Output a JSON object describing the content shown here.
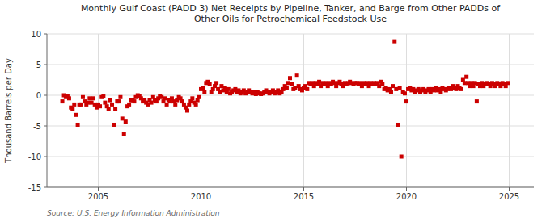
{
  "chart_data": {
    "type": "scatter",
    "title": "Monthly Gulf Coast (PADD 3) Net Receipts by Pipeline, Tanker, and Barge from Other PADDs of\nOther Oils for Petrochemical Feedstock Use",
    "ylabel": "Thousand Barrels per Day",
    "annotations": [
      "Source: U.S. Energy Information Administration"
    ],
    "color": "#cc0000",
    "marker": "square",
    "grid": true,
    "xlim": [
      2002.5,
      2026.2
    ],
    "xticks": [
      2005,
      2010,
      2015,
      2020,
      2025
    ],
    "ylim": [
      -15,
      10
    ],
    "yticks": [
      -15,
      -10,
      -5,
      0,
      5,
      10
    ],
    "x": [
      2003.25,
      2003.33,
      2003.42,
      2003.5,
      2003.58,
      2003.67,
      2003.75,
      2003.83,
      2003.92,
      2004.0,
      2004.08,
      2004.17,
      2004.25,
      2004.33,
      2004.42,
      2004.5,
      2004.58,
      2004.67,
      2004.75,
      2004.83,
      2004.92,
      2005.0,
      2005.08,
      2005.17,
      2005.25,
      2005.33,
      2005.42,
      2005.5,
      2005.58,
      2005.67,
      2005.75,
      2005.83,
      2005.92,
      2006.0,
      2006.08,
      2006.17,
      2006.25,
      2006.33,
      2006.42,
      2006.5,
      2006.58,
      2006.67,
      2006.75,
      2006.83,
      2006.92,
      2007.0,
      2007.08,
      2007.17,
      2007.25,
      2007.33,
      2007.42,
      2007.5,
      2007.58,
      2007.67,
      2007.75,
      2007.83,
      2007.92,
      2008.0,
      2008.08,
      2008.17,
      2008.25,
      2008.33,
      2008.42,
      2008.5,
      2008.58,
      2008.67,
      2008.75,
      2008.83,
      2008.92,
      2009.0,
      2009.08,
      2009.17,
      2009.25,
      2009.33,
      2009.42,
      2009.5,
      2009.58,
      2009.67,
      2009.75,
      2009.83,
      2009.92,
      2010.0,
      2010.08,
      2010.17,
      2010.25,
      2010.33,
      2010.42,
      2010.5,
      2010.58,
      2010.67,
      2010.75,
      2010.83,
      2010.92,
      2011.0,
      2011.08,
      2011.17,
      2011.25,
      2011.33,
      2011.42,
      2011.5,
      2011.58,
      2011.67,
      2011.75,
      2011.83,
      2011.92,
      2012.0,
      2012.08,
      2012.17,
      2012.25,
      2012.33,
      2012.42,
      2012.5,
      2012.58,
      2012.67,
      2012.75,
      2012.83,
      2012.92,
      2013.0,
      2013.08,
      2013.17,
      2013.25,
      2013.33,
      2013.42,
      2013.5,
      2013.58,
      2013.67,
      2013.75,
      2013.83,
      2013.92,
      2014.0,
      2014.08,
      2014.17,
      2014.25,
      2014.33,
      2014.42,
      2014.5,
      2014.58,
      2014.67,
      2014.75,
      2014.83,
      2014.92,
      2015.0,
      2015.08,
      2015.17,
      2015.25,
      2015.33,
      2015.42,
      2015.5,
      2015.58,
      2015.67,
      2015.75,
      2015.83,
      2015.92,
      2016.0,
      2016.08,
      2016.17,
      2016.25,
      2016.33,
      2016.42,
      2016.5,
      2016.58,
      2016.67,
      2016.75,
      2016.83,
      2016.92,
      2017.0,
      2017.08,
      2017.17,
      2017.25,
      2017.33,
      2017.42,
      2017.5,
      2017.58,
      2017.67,
      2017.75,
      2017.83,
      2017.92,
      2018.0,
      2018.08,
      2018.17,
      2018.25,
      2018.33,
      2018.42,
      2018.5,
      2018.58,
      2018.67,
      2018.75,
      2018.83,
      2018.92,
      2019.0,
      2019.08,
      2019.17,
      2019.25,
      2019.33,
      2019.42,
      2019.5,
      2019.58,
      2019.67,
      2019.75,
      2019.83,
      2019.92,
      2020.0,
      2020.08,
      2020.17,
      2020.25,
      2020.33,
      2020.42,
      2020.5,
      2020.58,
      2020.67,
      2020.75,
      2020.83,
      2020.92,
      2021.0,
      2021.08,
      2021.17,
      2021.25,
      2021.33,
      2021.42,
      2021.5,
      2021.58,
      2021.67,
      2021.75,
      2021.83,
      2021.92,
      2022.0,
      2022.08,
      2022.17,
      2022.25,
      2022.33,
      2022.42,
      2022.5,
      2022.58,
      2022.67,
      2022.75,
      2022.83,
      2022.92,
      2023.0,
      2023.08,
      2023.17,
      2023.25,
      2023.33,
      2023.42,
      2023.5,
      2023.58,
      2023.67,
      2023.75,
      2023.83,
      2023.92,
      2024.0,
      2024.08,
      2024.17,
      2024.25,
      2024.33,
      2024.42,
      2024.5,
      2024.58,
      2024.67,
      2024.75,
      2024.83,
      2024.92
    ],
    "values": [
      -1.0,
      0.0,
      -0.3,
      -0.2,
      -0.5,
      -2.0,
      -2.2,
      -1.5,
      -3.2,
      -4.8,
      -1.5,
      -1.5,
      -0.3,
      -1.0,
      -1.5,
      -1.2,
      -0.5,
      -1.2,
      -0.5,
      -1.5,
      -2.0,
      -1.5,
      -1.8,
      -0.3,
      -0.2,
      -1.2,
      -1.8,
      -2.2,
      -0.8,
      -1.5,
      -4.8,
      -2.2,
      -1.0,
      -1.0,
      -0.3,
      -3.8,
      -6.3,
      -4.3,
      -1.8,
      -1.5,
      -0.8,
      -0.8,
      -1.0,
      -0.3,
      0.0,
      -0.2,
      -0.5,
      -1.0,
      -0.8,
      -1.2,
      -1.5,
      -0.8,
      -1.2,
      -0.3,
      -0.8,
      -1.0,
      -0.5,
      -0.2,
      -0.3,
      -1.0,
      -0.5,
      -1.5,
      -0.8,
      -1.0,
      -0.5,
      -1.0,
      -1.5,
      -0.8,
      -0.3,
      -0.5,
      -1.0,
      -1.5,
      -2.0,
      -2.5,
      -1.5,
      -1.0,
      -0.5,
      -1.2,
      -1.5,
      -0.8,
      -0.3,
      1.0,
      1.2,
      0.5,
      2.0,
      2.2,
      1.8,
      0.5,
      1.0,
      1.5,
      2.0,
      1.0,
      0.5,
      1.5,
      0.8,
      1.2,
      0.5,
      1.0,
      0.3,
      0.5,
      0.8,
      1.0,
      0.5,
      0.8,
      0.3,
      0.5,
      0.8,
      0.3,
      0.5,
      0.8,
      0.5,
      0.3,
      0.5,
      0.2,
      0.5,
      0.3,
      0.2,
      0.3,
      0.5,
      0.8,
      0.5,
      0.3,
      0.5,
      0.8,
      0.3,
      0.5,
      0.8,
      0.3,
      0.5,
      1.0,
      1.5,
      1.2,
      2.0,
      2.8,
      1.8,
      1.0,
      1.2,
      3.2,
      1.5,
      1.0,
      0.8,
      1.2,
      1.5,
      1.0,
      2.0,
      1.8,
      2.0,
      1.5,
      2.0,
      1.8,
      2.2,
      1.5,
      2.0,
      1.8,
      2.0,
      1.5,
      2.0,
      1.8,
      2.2,
      2.0,
      1.5,
      2.0,
      2.2,
      1.8,
      1.5,
      2.0,
      1.8,
      2.0,
      2.2,
      2.0,
      1.8,
      2.0,
      2.0,
      1.8,
      2.0,
      1.5,
      2.0,
      1.8,
      2.0,
      1.5,
      2.0,
      1.8,
      2.0,
      1.8,
      2.0,
      1.5,
      2.2,
      1.8,
      1.0,
      1.2,
      0.8,
      1.0,
      0.5,
      1.5,
      8.8,
      1.0,
      -4.8,
      1.2,
      -10.0,
      0.5,
      0.3,
      -1.0,
      1.0,
      1.2,
      0.8,
      1.0,
      0.5,
      0.8,
      1.0,
      0.5,
      0.8,
      1.0,
      0.5,
      0.8,
      1.0,
      0.5,
      1.0,
      0.8,
      1.2,
      0.8,
      1.0,
      0.5,
      1.2,
      1.0,
      0.8,
      1.0,
      1.2,
      1.0,
      1.5,
      1.2,
      1.0,
      1.5,
      1.2,
      1.0,
      2.5,
      2.0,
      3.0,
      2.0,
      1.5,
      2.0,
      1.5,
      2.0,
      -1.0,
      1.8,
      1.5,
      2.0,
      1.5,
      1.8,
      2.0,
      1.8,
      1.5,
      2.0,
      1.8,
      1.5,
      2.0,
      1.8,
      1.5,
      2.0,
      1.8,
      1.5,
      2.0
    ]
  }
}
